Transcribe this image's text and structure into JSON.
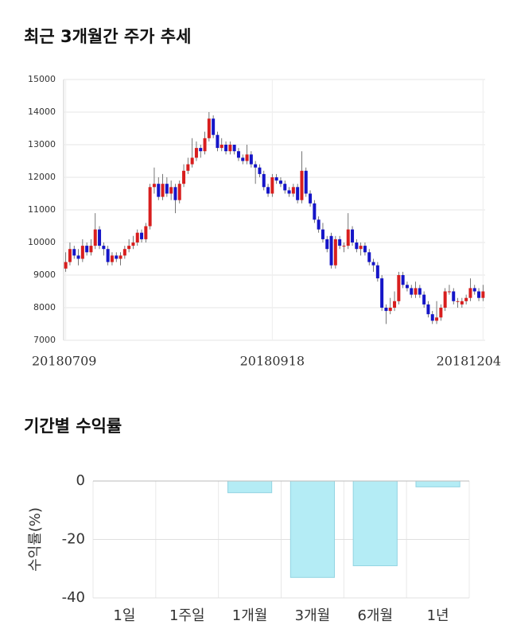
{
  "chart_data": [
    {
      "type": "candlestick",
      "title": "최근 3개월간 주가 추세",
      "categories": [
        "20180709",
        null,
        null,
        null,
        null,
        null,
        null,
        null,
        null,
        null,
        null,
        null,
        null,
        null,
        null,
        null,
        null,
        null,
        null,
        null,
        null,
        null,
        null,
        null,
        null,
        null,
        null,
        null,
        null,
        null,
        null,
        null,
        null,
        null,
        null,
        null,
        null,
        null,
        null,
        null,
        null,
        null,
        null,
        null,
        null,
        null,
        null,
        null,
        null,
        "20180918",
        null,
        null,
        null,
        null,
        null,
        null,
        null,
        null,
        null,
        null,
        null,
        null,
        null,
        null,
        null,
        null,
        null,
        null,
        null,
        null,
        null,
        null,
        null,
        null,
        null,
        null,
        null,
        null,
        null,
        null,
        null,
        null,
        null,
        null,
        null,
        null,
        null,
        null,
        null,
        null,
        null,
        null,
        null,
        null,
        null,
        null,
        null,
        null,
        null,
        "20181204"
      ],
      "ohlc": [
        [
          9200,
          9700,
          9100,
          9400
        ],
        [
          9400,
          10000,
          9300,
          9800
        ],
        [
          9800,
          9900,
          9500,
          9600
        ],
        [
          9600,
          9800,
          9300,
          9500
        ],
        [
          9500,
          10100,
          9400,
          9900
        ],
        [
          9900,
          10000,
          9600,
          9700
        ],
        [
          9700,
          10100,
          9600,
          9900
        ],
        [
          9900,
          10900,
          9800,
          10400
        ],
        [
          10400,
          10500,
          9800,
          9900
        ],
        [
          9900,
          10000,
          9600,
          9800
        ],
        [
          9800,
          9900,
          9300,
          9400
        ],
        [
          9400,
          9700,
          9300,
          9600
        ],
        [
          9600,
          9700,
          9400,
          9500
        ],
        [
          9500,
          9700,
          9300,
          9600
        ],
        [
          9600,
          9900,
          9500,
          9800
        ],
        [
          9800,
          10100,
          9700,
          9900
        ],
        [
          9900,
          10200,
          9800,
          10000
        ],
        [
          10000,
          10400,
          9900,
          10300
        ],
        [
          10300,
          10400,
          10000,
          10100
        ],
        [
          10100,
          10600,
          10000,
          10500
        ],
        [
          10500,
          11800,
          10400,
          11700
        ],
        [
          11700,
          12300,
          11500,
          11800
        ],
        [
          11800,
          12000,
          11300,
          11400
        ],
        [
          11400,
          12100,
          11300,
          11800
        ],
        [
          11800,
          12000,
          11400,
          11500
        ],
        [
          11500,
          11900,
          11300,
          11700
        ],
        [
          11700,
          11800,
          10900,
          11300
        ],
        [
          11300,
          11900,
          11200,
          11800
        ],
        [
          11800,
          12400,
          11700,
          12200
        ],
        [
          12200,
          12600,
          12100,
          12400
        ],
        [
          12400,
          13200,
          12300,
          12600
        ],
        [
          12600,
          13100,
          12500,
          12900
        ],
        [
          12900,
          13000,
          12600,
          12800
        ],
        [
          12800,
          13400,
          12700,
          13200
        ],
        [
          13200,
          14000,
          13100,
          13800
        ],
        [
          13800,
          13900,
          13200,
          13300
        ],
        [
          13300,
          13400,
          12800,
          12900
        ],
        [
          12900,
          13200,
          12800,
          13000
        ],
        [
          13000,
          13100,
          12700,
          12800
        ],
        [
          12800,
          13100,
          12700,
          13000
        ],
        [
          13000,
          13000,
          12700,
          12800
        ],
        [
          12800,
          12900,
          12500,
          12600
        ],
        [
          12600,
          12700,
          12400,
          12500
        ],
        [
          12500,
          13000,
          12400,
          12700
        ],
        [
          12700,
          12800,
          12300,
          12400
        ],
        [
          12400,
          12500,
          11800,
          12300
        ],
        [
          12300,
          12400,
          12000,
          12100
        ],
        [
          12100,
          12200,
          11600,
          11700
        ],
        [
          11700,
          11800,
          11400,
          11500
        ],
        [
          11500,
          12100,
          11400,
          12000
        ],
        [
          12000,
          12100,
          11800,
          11900
        ],
        [
          11900,
          12000,
          11700,
          11800
        ],
        [
          11800,
          11900,
          11500,
          11600
        ],
        [
          11600,
          11700,
          11400,
          11500
        ],
        [
          11500,
          11800,
          11400,
          11700
        ],
        [
          11700,
          11800,
          11200,
          11300
        ],
        [
          11300,
          12800,
          11200,
          12200
        ],
        [
          12200,
          12300,
          11400,
          11500
        ],
        [
          11500,
          11600,
          11100,
          11200
        ],
        [
          11200,
          11300,
          10600,
          10700
        ],
        [
          10700,
          10800,
          10300,
          10400
        ],
        [
          10400,
          10600,
          10000,
          10100
        ],
        [
          10100,
          10200,
          9700,
          9800
        ],
        [
          10200,
          10300,
          9200,
          9300
        ],
        [
          9300,
          10200,
          9200,
          10100
        ],
        [
          10100,
          10200,
          9800,
          9900
        ],
        [
          9900,
          10000,
          9700,
          9900
        ],
        [
          9900,
          10900,
          9800,
          10400
        ],
        [
          10400,
          10500,
          9900,
          10000
        ],
        [
          10000,
          10100,
          9700,
          9800
        ],
        [
          9800,
          10000,
          9600,
          9900
        ],
        [
          9900,
          10000,
          9600,
          9700
        ],
        [
          9700,
          9800,
          9300,
          9400
        ],
        [
          9400,
          9500,
          9100,
          9300
        ],
        [
          9300,
          9400,
          8800,
          8900
        ],
        [
          8900,
          9000,
          7900,
          8000
        ],
        [
          8000,
          8100,
          7500,
          7900
        ],
        [
          7900,
          8300,
          7800,
          8000
        ],
        [
          8000,
          8500,
          7900,
          8200
        ],
        [
          8200,
          9100,
          8100,
          9000
        ],
        [
          9000,
          9100,
          8600,
          8700
        ],
        [
          8700,
          8800,
          8500,
          8600
        ],
        [
          8600,
          8700,
          8300,
          8400
        ],
        [
          8400,
          8800,
          8300,
          8600
        ],
        [
          8600,
          8700,
          8300,
          8400
        ],
        [
          8400,
          8500,
          8000,
          8100
        ],
        [
          8100,
          8200,
          7700,
          7800
        ],
        [
          7800,
          7900,
          7500,
          7600
        ],
        [
          7600,
          8200,
          7500,
          7700
        ],
        [
          7700,
          8100,
          7600,
          8000
        ],
        [
          8000,
          8600,
          7900,
          8500
        ],
        [
          8500,
          8700,
          8400,
          8500
        ],
        [
          8500,
          8600,
          8100,
          8200
        ],
        [
          8200,
          8300,
          8000,
          8200
        ],
        [
          8100,
          8300,
          8000,
          8200
        ],
        [
          8200,
          8400,
          8100,
          8300
        ],
        [
          8300,
          8900,
          8200,
          8600
        ],
        [
          8600,
          8700,
          8400,
          8500
        ],
        [
          8500,
          8600,
          8200,
          8300
        ],
        [
          8300,
          8700,
          8200,
          8500
        ]
      ],
      "up_color": "#d81e1e",
      "down_color": "#1515c8",
      "ylim": [
        7000,
        15000
      ],
      "yticks": [
        7000,
        8000,
        9000,
        10000,
        11000,
        12000,
        13000,
        14000,
        15000
      ],
      "grid": true
    },
    {
      "type": "bar",
      "title": "기간별 수익률",
      "ylabel": "수익률(%)",
      "categories": [
        "1일",
        "1주일",
        "1개월",
        "3개월",
        "6개월",
        "1년"
      ],
      "values": [
        0,
        0,
        -4,
        -33,
        -29,
        -2
      ],
      "color": "#b4ecf5",
      "ylim": [
        -40,
        0
      ],
      "yticks": [
        0,
        -20,
        -40
      ],
      "grid": true
    }
  ]
}
